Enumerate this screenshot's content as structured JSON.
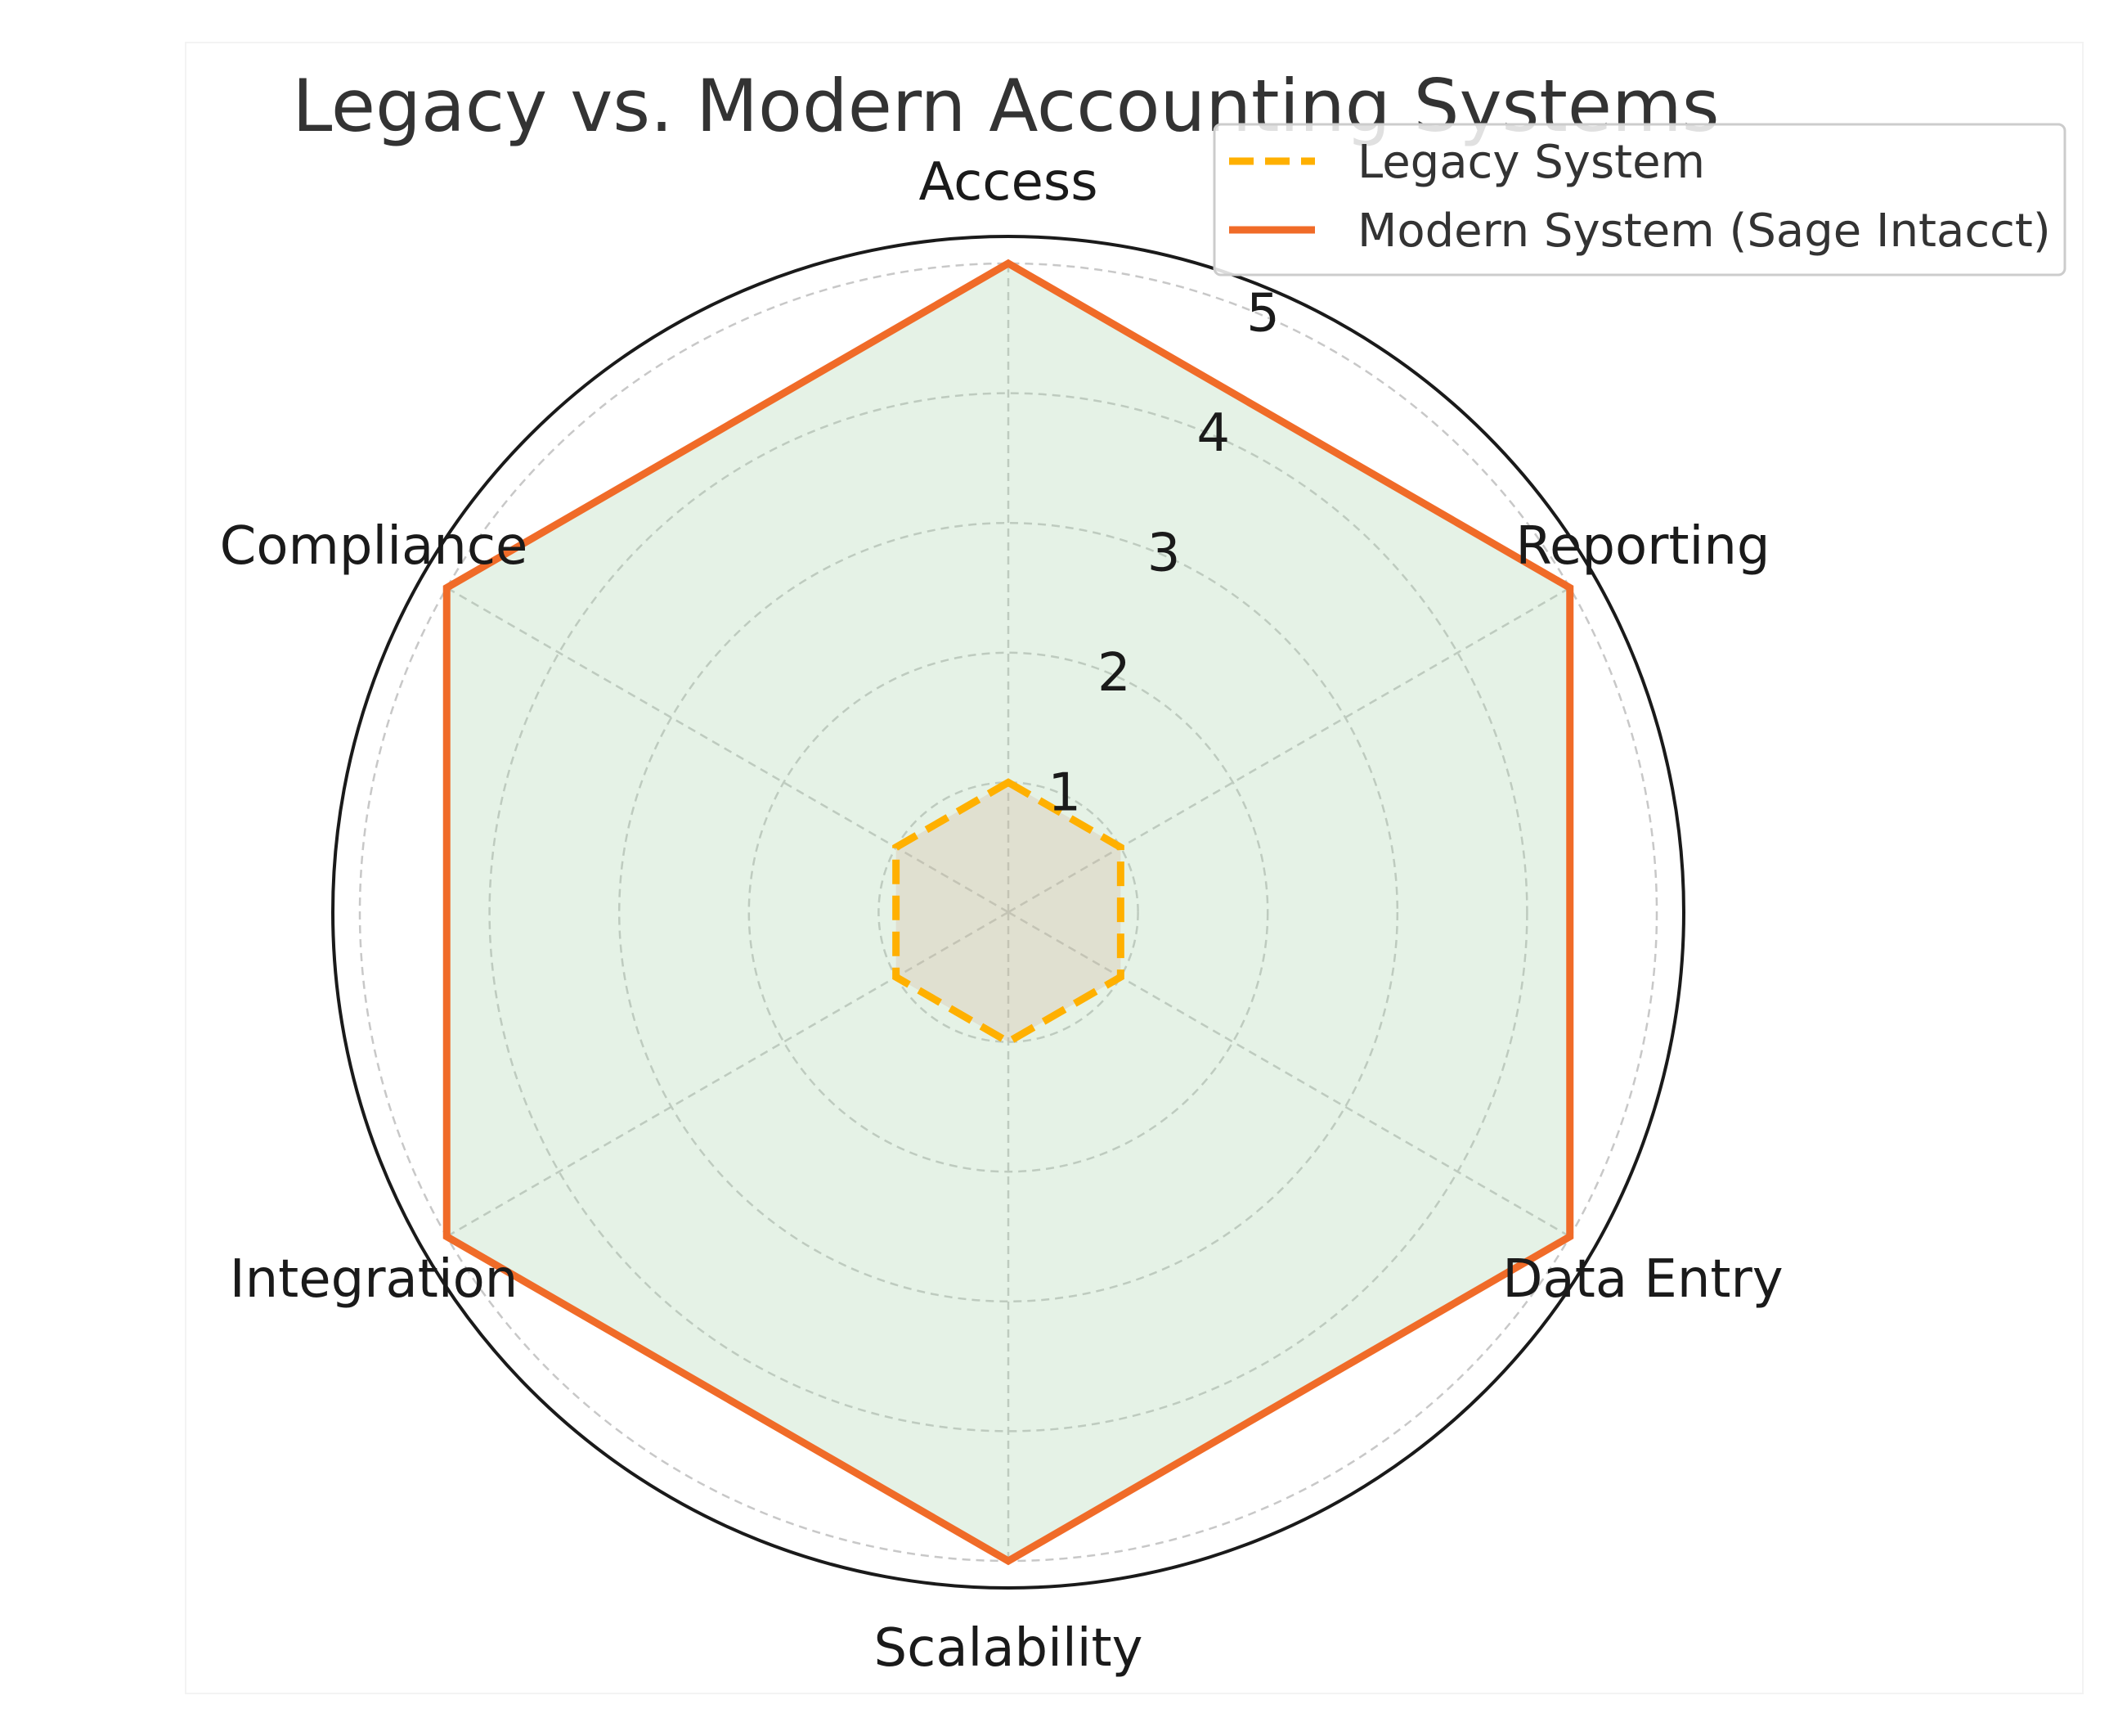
{
  "chart_data": {
    "type": "radar",
    "title": "Legacy vs. Modern Accounting Systems",
    "categories": [
      "Access",
      "Reporting",
      "Data Entry",
      "Scalability",
      "Integration",
      "Compliance"
    ],
    "rlim": [
      0,
      5
    ],
    "rticks": [
      1,
      2,
      3,
      4,
      5
    ],
    "rtick_labels": [
      "1",
      "2",
      "3",
      "4",
      "5"
    ],
    "grid": true,
    "legend_position": "top-right",
    "series": [
      {
        "name": "Legacy System",
        "values": [
          1,
          1,
          1,
          1,
          1,
          1
        ],
        "line_color": "#FFB000",
        "line_style": "dashed",
        "fill_color": "#D4B5A0"
      },
      {
        "name": "Modern System (Sage Intacct)",
        "values": [
          5,
          5,
          5,
          5,
          5,
          5
        ],
        "line_color": "#F06B28",
        "line_style": "solid",
        "fill_color": "#A9D3AB"
      }
    ]
  }
}
